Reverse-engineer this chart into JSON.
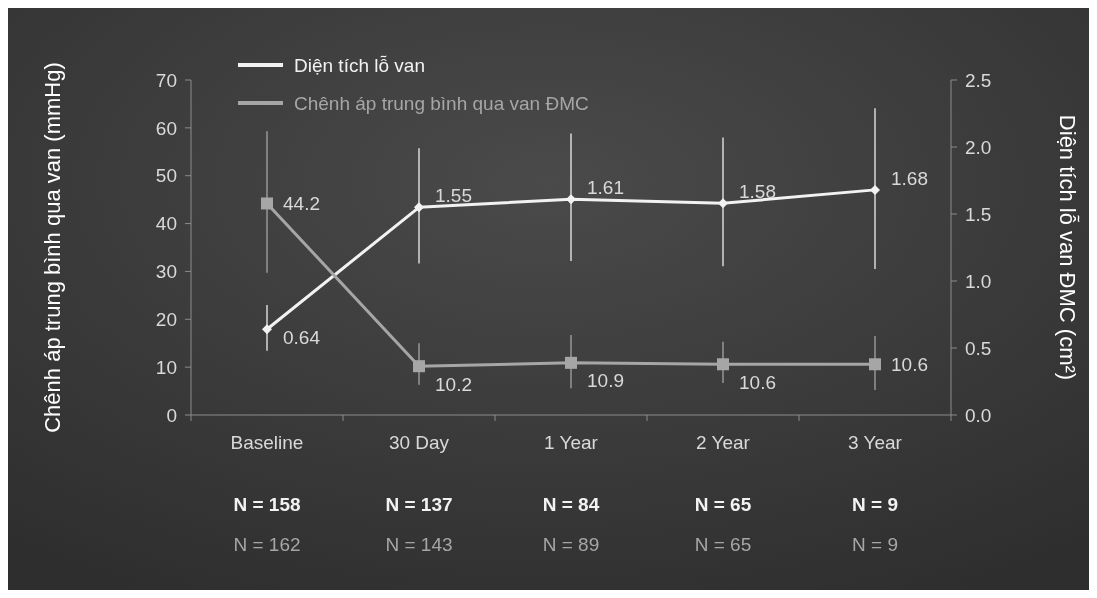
{
  "chart_data": {
    "type": "line",
    "categories": [
      "Baseline",
      "30 Day",
      "1 Year",
      "2 Year",
      "3 Year"
    ],
    "series": [
      {
        "name": "Diện tích lỗ van",
        "color": "#f2f2f2",
        "axis": "y2",
        "marker": "diamond",
        "values": [
          0.64,
          1.55,
          1.61,
          1.58,
          1.68
        ],
        "errors": [
          [
            0.48,
            0.82
          ],
          [
            1.13,
            1.99
          ],
          [
            1.15,
            2.1
          ],
          [
            1.11,
            2.07
          ],
          [
            1.09,
            2.29
          ]
        ]
      },
      {
        "name": "Chênh áp trung bình qua van ĐMC",
        "color": "#a6a6a6",
        "marker": "square",
        "values": [
          44.2,
          10.2,
          10.9,
          10.6,
          10.6
        ],
        "errors": [
          [
            29.7,
            59.3
          ],
          [
            6.3,
            15
          ],
          [
            5.6,
            16.7
          ],
          [
            6.7,
            15.3
          ],
          [
            5.2,
            16.5
          ]
        ]
      }
    ],
    "ylabel": "Chênh áp trung bình qua van (mmHg)",
    "y2label": "Diện tích lỗ van ĐMC (cm²)",
    "ylim": [
      0,
      70
    ],
    "yticks": [
      0,
      10,
      20,
      30,
      40,
      50,
      60,
      70
    ],
    "y2lim": [
      0,
      2.5
    ],
    "y2ticks": [
      {
        "value": 0,
        "label": "0.0"
      },
      {
        "value": 0.5,
        "label": "0.5"
      },
      {
        "value": 1,
        "label": "1.0"
      },
      {
        "value": 1.5,
        "label": "1.5"
      },
      {
        "value": 2,
        "label": "2.0"
      },
      {
        "value": 2.5,
        "label": "2.5"
      }
    ],
    "data_labels": true,
    "legend": "top left",
    "grid": false,
    "line_style": "solid",
    "annotations": [
      "N = 158",
      "N = 137",
      "N = 84",
      "N = 65",
      "N = 9",
      "N = 162",
      "N = 143",
      "N = 89",
      "N = 65",
      "N = 9"
    ]
  }
}
